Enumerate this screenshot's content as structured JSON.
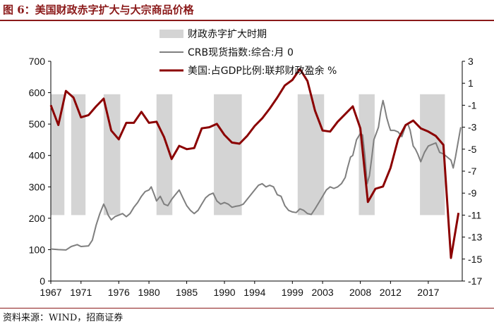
{
  "figure": {
    "title": "图 6：美国财政赤字扩大与大宗商品价格",
    "source": "资料来源：WIND，招商证券"
  },
  "chart_data": {
    "type": "line",
    "title": "美国财政赤字扩大与大宗商品价格",
    "x_ticks": [
      1967,
      1971,
      1976,
      1980,
      1985,
      1990,
      1994,
      1999,
      2003,
      2008,
      2012,
      2017
    ],
    "xlim": [
      1967,
      2021.5
    ],
    "left_axis": {
      "ylim": [
        0,
        700
      ],
      "ticks": [
        0,
        100,
        200,
        300,
        400,
        500,
        600,
        700
      ]
    },
    "right_axis": {
      "ylim": [
        -17,
        3
      ],
      "ticks": [
        3,
        1,
        -1,
        -3,
        -5,
        -7,
        -9,
        -11,
        -13,
        -15,
        -17
      ]
    },
    "legend": [
      {
        "name": "财政赤字扩大时期",
        "kind": "band",
        "color": "#d4d4d4"
      },
      {
        "name": "CRB现货指数:综合:月 0",
        "kind": "line",
        "color": "#7f7f7f"
      },
      {
        "name": "美国:占GDP比例:联邦财政盈余 %",
        "kind": "line",
        "color": "#8b0000"
      }
    ],
    "deficit_periods": [
      [
        1967.0,
        1968.8
      ],
      [
        1969.7,
        1971.6
      ],
      [
        1974.0,
        1976.2
      ],
      [
        1981.0,
        1983.1
      ],
      [
        1988.6,
        1992.3
      ],
      [
        1999.7,
        2003.2
      ],
      [
        2007.8,
        2009.9
      ],
      [
        2015.9,
        2019.2
      ]
    ],
    "band_range": [
      210,
      595
    ],
    "series": [
      {
        "name": "CRB现货指数:综合:月 0",
        "axis": "left",
        "color": "#7f7f7f",
        "x": [
          1967.0,
          1968.0,
          1969.0,
          1969.7,
          1970.5,
          1971.0,
          1972.0,
          1972.5,
          1973.0,
          1973.5,
          1974.0,
          1974.3,
          1974.6,
          1975.0,
          1975.5,
          1976.0,
          1976.5,
          1977.0,
          1977.5,
          1978.0,
          1978.5,
          1979.0,
          1979.5,
          1980.0,
          1980.3,
          1980.7,
          1981.0,
          1981.5,
          1982.0,
          1982.5,
          1983.0,
          1983.5,
          1984.0,
          1984.5,
          1985.0,
          1985.5,
          1986.0,
          1986.5,
          1987.0,
          1987.5,
          1988.0,
          1988.5,
          1989.0,
          1989.5,
          1990.0,
          1990.5,
          1991.0,
          1991.5,
          1992.0,
          1992.5,
          1993.0,
          1993.5,
          1994.0,
          1994.5,
          1995.0,
          1995.5,
          1996.0,
          1996.5,
          1997.0,
          1997.5,
          1998.0,
          1998.5,
          1999.0,
          1999.5,
          2000.0,
          2000.5,
          2001.0,
          2001.5,
          2002.0,
          2002.5,
          2003.0,
          2003.5,
          2004.0,
          2004.5,
          2005.0,
          2005.5,
          2006.0,
          2006.3,
          2006.7,
          2007.0,
          2007.5,
          2008.0,
          2008.3,
          2008.6,
          2008.9,
          2009.2,
          2009.5,
          2009.8,
          2010.1,
          2010.4,
          2010.7,
          2011.0,
          2011.2,
          2011.5,
          2011.8,
          2012.0,
          2012.5,
          2013.0,
          2013.5,
          2014.0,
          2014.3,
          2014.6,
          2015.0,
          2015.3,
          2015.6,
          2016.0,
          2016.5,
          2017.0,
          2017.5,
          2018.0,
          2018.5,
          2019.0,
          2019.5,
          2020.0,
          2020.3,
          2020.6,
          2021.0,
          2021.3
        ],
        "values": [
          102,
          100,
          99,
          110,
          116,
          110,
          112,
          130,
          178,
          215,
          245,
          230,
          210,
          195,
          205,
          210,
          215,
          205,
          215,
          235,
          250,
          270,
          285,
          290,
          300,
          275,
          255,
          270,
          245,
          240,
          260,
          275,
          290,
          265,
          240,
          225,
          215,
          225,
          245,
          265,
          275,
          280,
          255,
          245,
          250,
          245,
          235,
          238,
          240,
          245,
          260,
          275,
          290,
          305,
          310,
          300,
          305,
          300,
          275,
          270,
          240,
          225,
          220,
          218,
          230,
          225,
          215,
          212,
          230,
          250,
          270,
          290,
          300,
          295,
          300,
          310,
          330,
          360,
          395,
          400,
          450,
          470,
          465,
          400,
          310,
          335,
          390,
          450,
          470,
          490,
          540,
          575,
          555,
          520,
          495,
          480,
          480,
          475,
          460,
          495,
          500,
          480,
          430,
          420,
          405,
          380,
          410,
          430,
          435,
          440,
          410,
          405,
          395,
          385,
          360,
          395,
          450,
          490
        ]
      },
      {
        "name": "美国:占GDP比例:联邦财政盈余 %",
        "axis": "right",
        "color": "#8b0000",
        "x": [
          1967,
          1968,
          1969,
          1970,
          1971,
          1972,
          1973,
          1974,
          1975,
          1976,
          1977,
          1978,
          1979,
          1980,
          1981,
          1982,
          1983,
          1984,
          1985,
          1986,
          1987,
          1988,
          1989,
          1990,
          1991,
          1992,
          1993,
          1994,
          1995,
          1996,
          1997,
          1998,
          1999,
          2000,
          2001,
          2002,
          2003,
          2004,
          2005,
          2006,
          2007,
          2008,
          2009,
          2010,
          2011,
          2012,
          2013,
          2014,
          2015,
          2016,
          2017,
          2018,
          2019,
          2020,
          2021
        ],
        "values": [
          -1.0,
          -2.8,
          0.3,
          -0.3,
          -2.1,
          -1.9,
          -1.1,
          -0.4,
          -3.3,
          -4.1,
          -2.6,
          -2.6,
          -1.6,
          -2.6,
          -2.5,
          -3.9,
          -5.9,
          -4.7,
          -5.0,
          -4.9,
          -3.1,
          -3.0,
          -2.7,
          -3.7,
          -4.4,
          -4.5,
          -3.8,
          -2.9,
          -2.2,
          -1.3,
          -0.3,
          0.8,
          1.3,
          2.3,
          1.2,
          -1.5,
          -3.3,
          -3.4,
          -2.5,
          -1.8,
          -1.1,
          -3.1,
          -9.8,
          -8.6,
          -8.4,
          -6.7,
          -4.1,
          -2.8,
          -2.4,
          -3.1,
          -3.4,
          -3.8,
          -4.6,
          -14.9,
          -10.8
        ]
      }
    ]
  }
}
